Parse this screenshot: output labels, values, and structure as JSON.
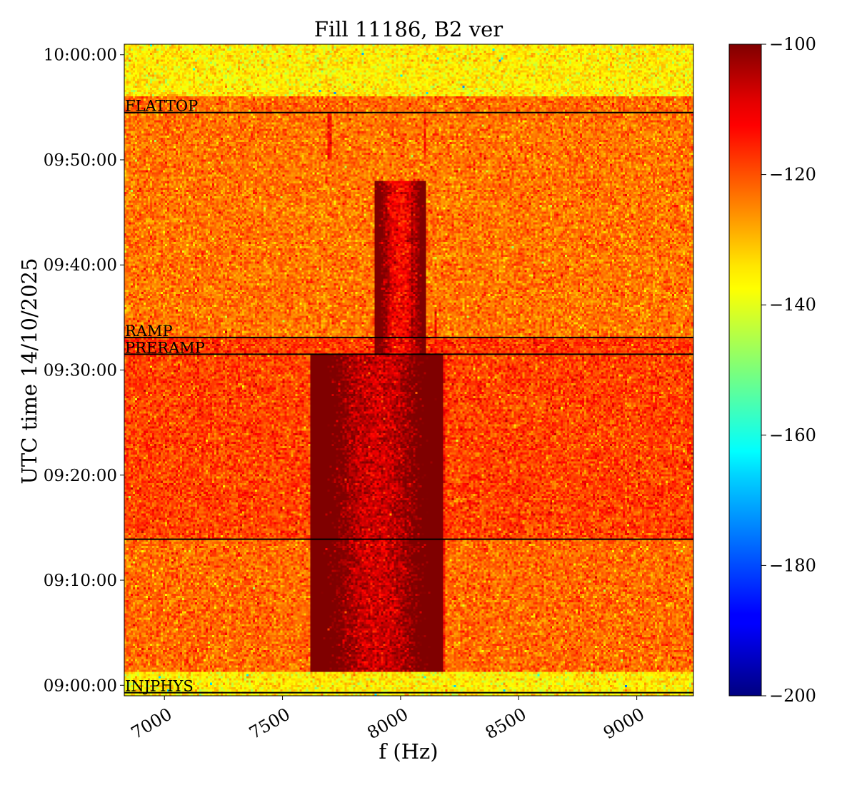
{
  "chart_data": {
    "type": "heatmap",
    "title": "Fill 11186, B2 ver",
    "xlabel": "f (Hz)",
    "ylabel": "UTC time 14/10/2025",
    "xlim": [
      6830,
      9240
    ],
    "ylim_minutes": [
      -1.0,
      61.0
    ],
    "xticks": [
      7000,
      7500,
      8000,
      8500,
      9000
    ],
    "xtick_labels": [
      "7000",
      "7500",
      "8000",
      "8500",
      "9000"
    ],
    "yticks": [
      "09:00:00",
      "09:10:00",
      "09:20:00",
      "09:30:00",
      "09:40:00",
      "09:50:00",
      "10:00:00"
    ],
    "ytick_minutes": [
      0,
      10,
      20,
      30,
      40,
      50,
      60
    ],
    "colorbar": {
      "colormap": "jet",
      "range": [
        -200,
        -100
      ],
      "ticks": [
        -100,
        -120,
        -140,
        -160,
        -180,
        -200
      ],
      "tick_labels": [
        "−100",
        "−120",
        "−140",
        "−160",
        "−180",
        "−200"
      ]
    },
    "data_time_range_minutes": [
      1.3,
      56.0
    ],
    "background_level": -136,
    "bands": [
      {
        "from_min": 1.3,
        "to_min": 13.9,
        "level": -123
      },
      {
        "from_min": 13.9,
        "to_min": 31.5,
        "level": -119
      },
      {
        "from_min": 31.5,
        "to_min": 33.1,
        "level": -118
      },
      {
        "from_min": 33.1,
        "to_min": 54.5,
        "level": -124
      },
      {
        "from_min": 54.5,
        "to_min": 56.0,
        "level": -123
      }
    ],
    "hot_spots": [
      {
        "f_center": 7900,
        "f_halfwidth": 200,
        "from_min": 1.3,
        "to_min": 31.5,
        "level": -108
      },
      {
        "f_center": 8000,
        "f_halfwidth": 80,
        "from_min": 31.5,
        "to_min": 48,
        "level": -113
      }
    ],
    "spectral_lines": [
      {
        "f": 8050,
        "from_min": 14,
        "to_min": 46,
        "level": -103
      },
      {
        "f": 8150,
        "from_min": 1.3,
        "to_min": 36,
        "level": -113
      },
      {
        "f": 8180,
        "from_min": 1.3,
        "to_min": 33,
        "level": -115
      },
      {
        "f": 8500,
        "from_min": 14,
        "to_min": 22,
        "level": -115
      },
      {
        "f": 7700,
        "from_min": 50,
        "to_min": 54.5,
        "level": -113
      },
      {
        "f": 8100,
        "from_min": 50,
        "to_min": 54.5,
        "level": -115
      }
    ],
    "event_lines": [
      {
        "label": "FLATTOP",
        "minute": 54.5
      },
      {
        "label": "RAMP",
        "minute": 33.1
      },
      {
        "label": "PRERAMP",
        "minute": 31.5
      },
      {
        "label": "",
        "minute": 13.9
      },
      {
        "label": "INJPHYS",
        "minute": -0.7
      }
    ]
  }
}
